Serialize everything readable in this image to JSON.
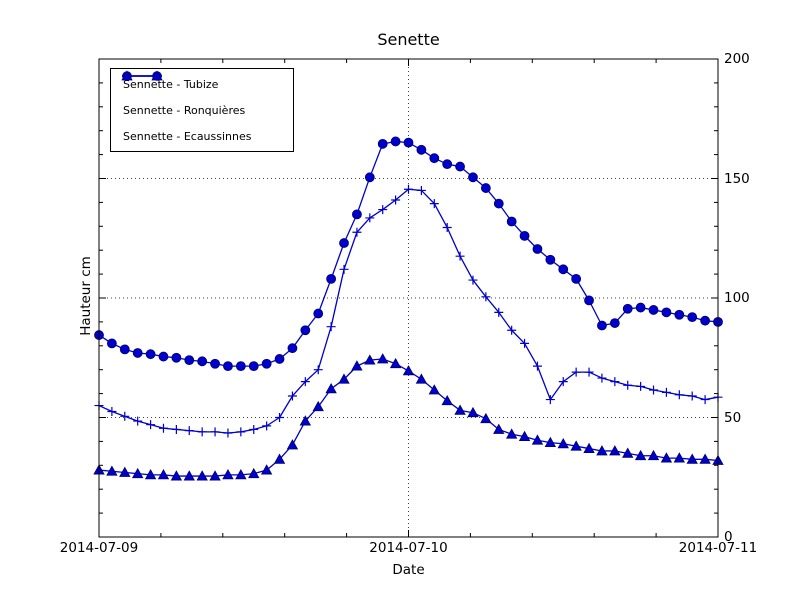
{
  "chart_data": {
    "type": "line",
    "title": "Senette",
    "xlabel": "Date",
    "ylabel": "Hauteur cm",
    "ylim": [
      0,
      200
    ],
    "y_major_ticks": [
      0,
      50,
      100,
      150,
      200
    ],
    "y_minor_tick_step": 10,
    "x_tick_labels": [
      "2014-07-09",
      "2014-07-10",
      "2014-07-11"
    ],
    "x_hours": 48,
    "x_minor_divisions_per_day": 5,
    "grid": {
      "style": "dotted",
      "horizontal_at": [
        50,
        100,
        150
      ],
      "vertical_at_hours": [
        24
      ]
    },
    "legend_position": "upper-left",
    "line_color": "#0000cc",
    "series": [
      {
        "name": "Sennette - Tubize",
        "marker": "circle",
        "values": [
          84.5,
          81,
          78.5,
          77,
          76.5,
          75.5,
          75,
          74,
          73.5,
          72.5,
          71.5,
          71.5,
          71.5,
          72.5,
          74.5,
          79,
          86.5,
          93.5,
          108,
          123,
          135,
          150.5,
          164.5,
          165.5,
          165,
          162,
          158.5,
          156,
          155,
          150.5,
          146,
          139.5,
          132,
          126,
          120.5,
          116,
          112,
          108,
          99,
          88.5,
          89.5,
          95.5,
          96,
          95,
          94,
          93,
          92,
          90.5,
          90
        ]
      },
      {
        "name": "Sennette - Ronquières",
        "marker": "plus",
        "values": [
          55,
          52.5,
          50.5,
          48.5,
          47,
          45.5,
          45,
          44.5,
          44,
          44,
          43.5,
          44,
          45,
          46.5,
          50,
          59,
          65,
          70,
          88,
          112,
          127.5,
          133.5,
          137,
          141,
          145.5,
          145,
          139.5,
          129.5,
          117.5,
          107.5,
          100.5,
          94,
          86.5,
          81,
          71.5,
          57.5,
          65,
          69,
          69,
          66.5,
          65,
          63.5,
          63,
          61.5,
          60.5,
          59.5,
          59,
          57.5,
          58.5
        ]
      },
      {
        "name": "Sennette - Ecaussinnes",
        "marker": "triangle",
        "values": [
          28,
          27.5,
          27,
          26.5,
          26,
          26,
          25.5,
          25.5,
          25.5,
          25.5,
          26,
          26,
          26.5,
          28,
          32.5,
          38.5,
          48.5,
          54.5,
          62,
          66,
          71.5,
          74,
          74.5,
          72.5,
          69.5,
          66,
          61.5,
          57,
          53,
          52,
          49.5,
          45,
          43,
          42,
          40.5,
          39.5,
          39,
          38,
          37,
          36,
          36,
          35,
          34,
          34,
          33,
          33,
          32.5,
          32.5,
          32
        ]
      }
    ]
  }
}
